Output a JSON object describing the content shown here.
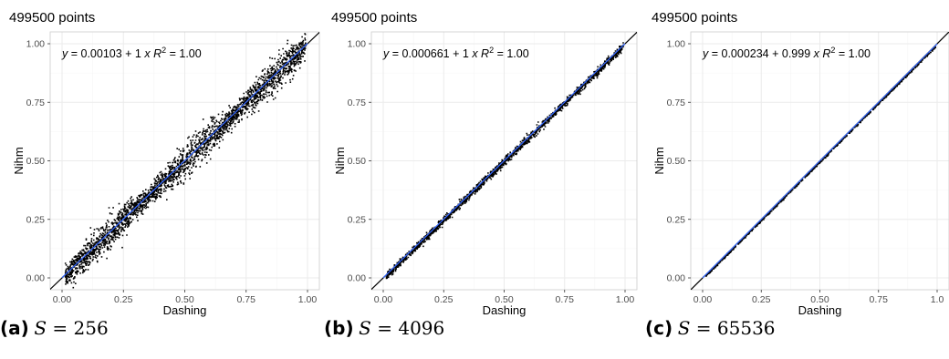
{
  "chart_data": [
    {
      "type": "scatter",
      "title": "499500  points",
      "xlabel": "Dashing",
      "ylabel": "Nihm",
      "xlim": [
        0,
        1
      ],
      "ylim": [
        0,
        1
      ],
      "xticks": [
        "0.00",
        "0.25",
        "0.50",
        "0.75",
        "1.00"
      ],
      "yticks": [
        "0.00",
        "0.25",
        "0.50",
        "0.75",
        "1.00"
      ],
      "grid": true,
      "annotation": {
        "y": "y",
        "eq": "= 0.00103 + 1",
        "x": "x",
        "r": "R",
        "sup": "2",
        "rval": "= 1.00"
      },
      "fit": {
        "intercept": 0.00103,
        "slope": 1
      },
      "scatter_spread": 0.03,
      "caption": {
        "label": "(a)",
        "var": "S",
        "eq": " = ",
        "value": "256"
      }
    },
    {
      "type": "scatter",
      "title": "499500  points",
      "xlabel": "Dashing",
      "ylabel": "Nihm",
      "xlim": [
        0,
        1
      ],
      "ylim": [
        0,
        1
      ],
      "xticks": [
        "0.00",
        "0.25",
        "0.50",
        "0.75",
        "1.00"
      ],
      "yticks": [
        "0.00",
        "0.25",
        "0.50",
        "0.75",
        "1.00"
      ],
      "grid": true,
      "annotation": {
        "y": "y",
        "eq": "= 0.000661 + 1",
        "x": "x",
        "r": "R",
        "sup": "2",
        "rval": "= 1.00"
      },
      "fit": {
        "intercept": 0.000661,
        "slope": 1
      },
      "scatter_spread": 0.008,
      "caption": {
        "label": "(b)",
        "var": "S",
        "eq": " = ",
        "value": "4096"
      }
    },
    {
      "type": "scatter",
      "title": "499500  points",
      "xlabel": "Dashing",
      "ylabel": "Nihm",
      "xlim": [
        0,
        1
      ],
      "ylim": [
        0,
        1
      ],
      "xticks": [
        "0.00",
        "0.25",
        "0.50",
        "0.75",
        "1.0"
      ],
      "yticks": [
        "0.00",
        "0.25",
        "0.50",
        "0.75",
        "1.00"
      ],
      "grid": true,
      "annotation": {
        "y": "y",
        "eq": "= 0.000234 + 0.999",
        "x": "x",
        "r": "R",
        "sup": "2",
        "rval": "= 1.00"
      },
      "fit": {
        "intercept": 0.000234,
        "slope": 0.999
      },
      "scatter_spread": 0.002,
      "caption": {
        "label": "(c)",
        "var": "S",
        "eq": " = ",
        "value": "65536"
      }
    }
  ],
  "colors": {
    "points": "#000000",
    "fit_line": "#3366ff",
    "identity_line": "#000000",
    "grid_major": "#ebebeb",
    "grid_minor": "#f5f5f5",
    "panel_border": "#cccccc",
    "tick_text": "#4d4d4d"
  }
}
